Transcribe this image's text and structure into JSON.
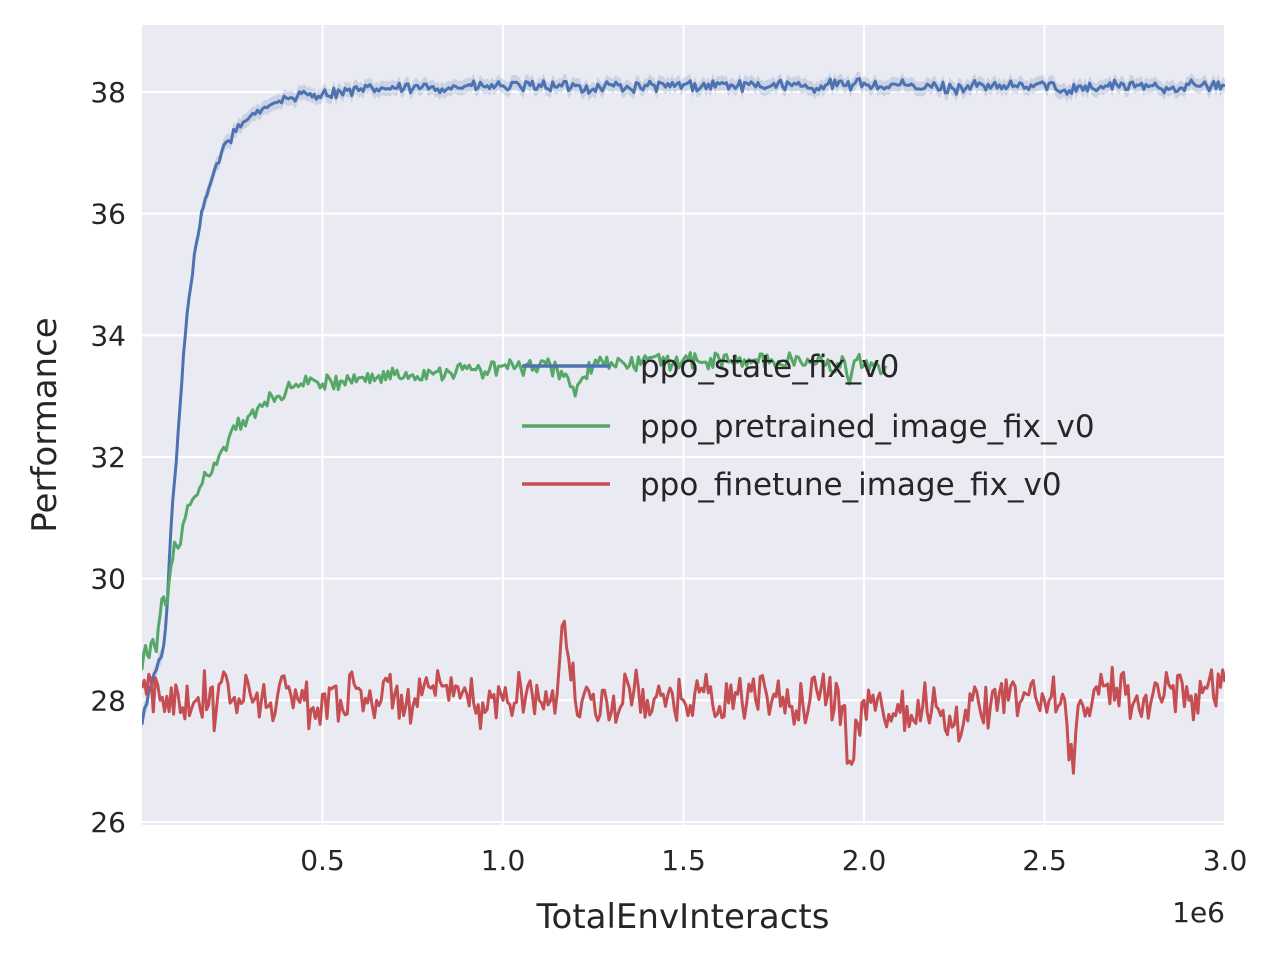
{
  "colors": {
    "background": "#eaeaf2",
    "grid": "#ffffff",
    "text": "#262626"
  },
  "chart_data": {
    "type": "line",
    "title": "",
    "xlabel": "TotalEnvInteracts",
    "ylabel": "Performance",
    "x_offset_label": "1e6",
    "xlim": [
      0,
      3.0
    ],
    "ylim": [
      25.95,
      39.1
    ],
    "x_unit_scale": 1000000,
    "xticks": [
      0.5,
      1.0,
      1.5,
      2.0,
      2.5,
      3.0
    ],
    "xtick_labels": [
      "0.5",
      "1.0",
      "1.5",
      "2.0",
      "2.5",
      "3.0"
    ],
    "yticks": [
      26,
      28,
      30,
      32,
      34,
      36,
      38
    ],
    "ytick_labels": [
      "26",
      "28",
      "30",
      "32",
      "34",
      "36",
      "38"
    ],
    "grid": true,
    "legend": {
      "position": "center-right",
      "entries": [
        "ppo_state_fix_v0",
        "ppo_pretrained_image_fix_v0",
        "ppo_finetune_image_fix_v0"
      ]
    },
    "series": [
      {
        "name": "ppo_state_fix_v0",
        "color": "#4c72b0",
        "band": true,
        "x": [
          0,
          0.02,
          0.04,
          0.06,
          0.07,
          0.08,
          0.09,
          0.1,
          0.11,
          0.12,
          0.13,
          0.14,
          0.15,
          0.16,
          0.17,
          0.18,
          0.19,
          0.2,
          0.22,
          0.24,
          0.26,
          0.28,
          0.3,
          0.32,
          0.34,
          0.36,
          0.38,
          0.4,
          0.43,
          0.46,
          0.5,
          0.55,
          0.6,
          0.65,
          0.7,
          0.75,
          0.8,
          0.85,
          0.9,
          0.95,
          1.0,
          1.05,
          1.1,
          1.15,
          1.2,
          1.25,
          1.3,
          1.35,
          1.4,
          1.45,
          1.5,
          1.55,
          1.6,
          1.65,
          1.7,
          1.75,
          1.8,
          1.85,
          1.9,
          1.95,
          2.0,
          2.05,
          2.1,
          2.15,
          2.2,
          2.25,
          2.3,
          2.35,
          2.4,
          2.45,
          2.5,
          2.55,
          2.6,
          2.65,
          2.7,
          2.75,
          2.8,
          2.85,
          2.9,
          2.95,
          3.0
        ],
        "y": [
          27.6,
          28.2,
          28.5,
          28.9,
          29.6,
          30.8,
          31.6,
          32.4,
          33.2,
          34.0,
          34.6,
          35.0,
          35.5,
          35.8,
          36.1,
          36.3,
          36.5,
          36.7,
          37.0,
          37.2,
          37.35,
          37.5,
          37.6,
          37.7,
          37.75,
          37.8,
          37.85,
          37.9,
          37.92,
          37.95,
          37.97,
          38.0,
          38.02,
          38.05,
          38.06,
          38.05,
          38.08,
          38.07,
          38.1,
          38.08,
          38.1,
          38.07,
          38.12,
          38.08,
          38.1,
          38.05,
          38.12,
          38.06,
          38.1,
          38.08,
          38.12,
          38.09,
          38.13,
          38.1,
          38.08,
          38.14,
          38.1,
          38.06,
          38.13,
          38.1,
          38.15,
          38.08,
          38.12,
          38.05,
          38.1,
          38.04,
          38.12,
          38.06,
          38.1,
          38.08,
          38.13,
          38.02,
          38.1,
          38.06,
          38.12,
          38.08,
          38.1,
          38.06,
          38.12,
          38.09,
          38.1
        ]
      },
      {
        "name": "ppo_pretrained_image_fix_v0",
        "color": "#55a868",
        "band": false,
        "x": [
          0,
          0.01,
          0.02,
          0.03,
          0.04,
          0.05,
          0.06,
          0.07,
          0.08,
          0.09,
          0.1,
          0.12,
          0.14,
          0.16,
          0.18,
          0.2,
          0.22,
          0.24,
          0.26,
          0.28,
          0.3,
          0.32,
          0.34,
          0.36,
          0.38,
          0.4,
          0.42,
          0.44,
          0.46,
          0.48,
          0.5,
          0.55,
          0.6,
          0.65,
          0.7,
          0.75,
          0.8,
          0.85,
          0.9,
          0.95,
          1.0,
          1.05,
          1.1,
          1.15,
          1.18,
          1.2,
          1.22,
          1.25,
          1.3,
          1.35,
          1.4,
          1.45,
          1.5,
          1.55,
          1.6,
          1.65,
          1.7,
          1.75,
          1.8,
          1.85,
          1.9,
          1.92,
          1.94,
          1.96,
          1.98,
          2.0,
          2.02,
          2.04,
          2.06
        ],
        "y": [
          28.5,
          28.9,
          28.7,
          29.0,
          28.8,
          29.4,
          29.7,
          29.6,
          30.2,
          30.6,
          30.5,
          31.0,
          31.3,
          31.5,
          31.7,
          31.9,
          32.1,
          32.3,
          32.45,
          32.6,
          32.7,
          32.8,
          32.9,
          33.0,
          33.0,
          33.1,
          33.15,
          33.2,
          33.2,
          33.25,
          33.2,
          33.25,
          33.3,
          33.3,
          33.35,
          33.35,
          33.4,
          33.4,
          33.45,
          33.4,
          33.5,
          33.45,
          33.5,
          33.45,
          33.3,
          33.0,
          33.3,
          33.5,
          33.55,
          33.5,
          33.6,
          33.55,
          33.6,
          33.55,
          33.6,
          33.55,
          33.6,
          33.55,
          33.6,
          33.55,
          33.6,
          33.4,
          33.65,
          33.2,
          33.6,
          33.5,
          33.55,
          33.5,
          33.5
        ]
      },
      {
        "name": "ppo_finetune_image_fix_v0",
        "color": "#c44e52",
        "band": false,
        "x": [
          0,
          0.05,
          0.1,
          0.15,
          0.19,
          0.2,
          0.22,
          0.25,
          0.3,
          0.35,
          0.4,
          0.45,
          0.48,
          0.5,
          0.55,
          0.6,
          0.65,
          0.7,
          0.75,
          0.8,
          0.85,
          0.9,
          0.95,
          1.0,
          1.05,
          1.1,
          1.15,
          1.17,
          1.2,
          1.25,
          1.3,
          1.35,
          1.4,
          1.45,
          1.5,
          1.55,
          1.6,
          1.65,
          1.7,
          1.75,
          1.8,
          1.85,
          1.9,
          1.94,
          1.96,
          2.0,
          2.05,
          2.1,
          2.15,
          2.2,
          2.25,
          2.3,
          2.35,
          2.4,
          2.45,
          2.5,
          2.55,
          2.58,
          2.6,
          2.65,
          2.7,
          2.75,
          2.8,
          2.85,
          2.9,
          2.95,
          3.0
        ],
        "y": [
          28.2,
          28.0,
          28.1,
          28.0,
          28.2,
          27.5,
          28.3,
          28.0,
          28.1,
          27.9,
          28.2,
          28.0,
          27.7,
          28.1,
          28.0,
          28.2,
          28.0,
          28.1,
          27.9,
          28.2,
          28.0,
          28.1,
          27.8,
          28.0,
          28.2,
          28.0,
          28.1,
          29.3,
          28.0,
          28.1,
          27.8,
          28.2,
          28.0,
          27.9,
          28.0,
          28.2,
          27.9,
          28.1,
          28.0,
          28.1,
          27.9,
          28.0,
          28.1,
          27.9,
          27.0,
          28.0,
          27.9,
          27.8,
          28.0,
          27.9,
          27.6,
          28.0,
          27.9,
          28.0,
          28.1,
          28.0,
          28.1,
          26.8,
          28.0,
          28.1,
          28.2,
          28.0,
          28.1,
          28.2,
          28.0,
          28.2,
          28.3
        ]
      }
    ]
  }
}
